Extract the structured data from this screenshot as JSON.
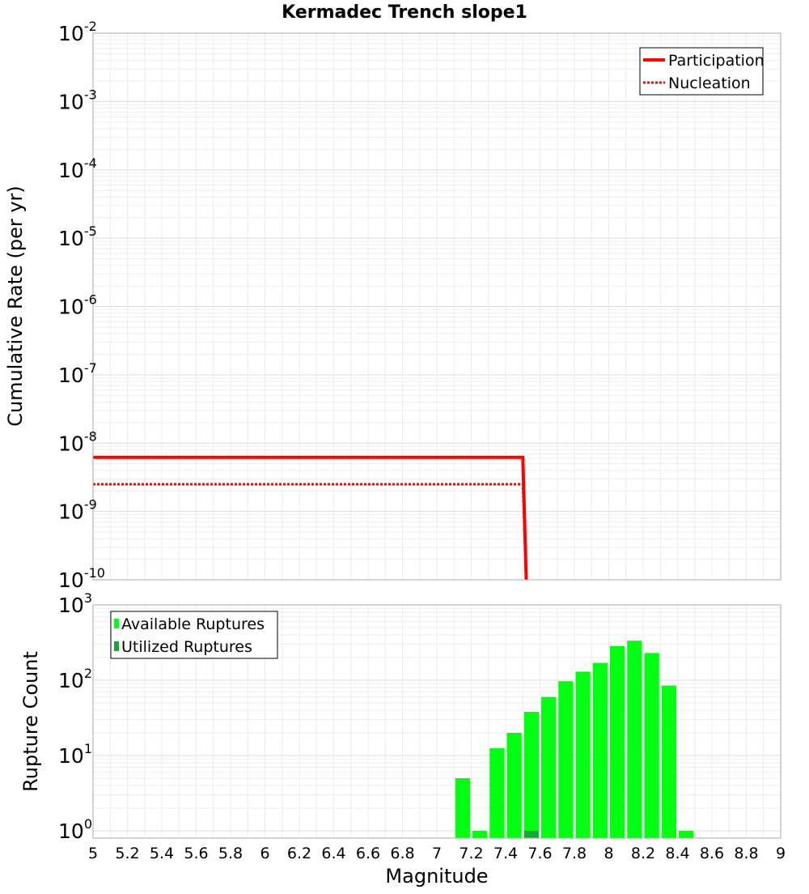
{
  "title": "Kermadec Trench slope1",
  "x_axis": {
    "label": "Magnitude",
    "range": [
      5,
      9
    ],
    "ticks": [
      "5",
      "5.2",
      "5.4",
      "5.6",
      "5.8",
      "6",
      "6.2",
      "6.4",
      "6.6",
      "6.8",
      "7",
      "7.2",
      "7.4",
      "7.6",
      "7.8",
      "8",
      "8.2",
      "8.4",
      "8.6",
      "8.8",
      "9"
    ]
  },
  "chart_data": [
    {
      "type": "line",
      "title": "Kermadec Trench slope1",
      "xlabel": "Magnitude",
      "ylabel": "Cumulative Rate (per yr)",
      "yscale": "log",
      "xlim": [
        5,
        9
      ],
      "ylim_exponents": [
        -10,
        -2
      ],
      "y_tick_base": "10",
      "y_tick_exponents": [
        "-2",
        "-3",
        "-4",
        "-5",
        "-6",
        "-7",
        "-8",
        "-9",
        "-10"
      ],
      "legend_position": "top-right",
      "series": [
        {
          "name": "Participation",
          "style": "solid",
          "color": "#ff0000",
          "x": [
            5.0,
            7.5,
            7.52
          ],
          "y": [
            6.2e-09,
            6.2e-09,
            1e-10
          ]
        },
        {
          "name": "Nucleation",
          "style": "dotted",
          "color": "#ff0000",
          "x": [
            5.0,
            7.5,
            7.52
          ],
          "y": [
            2.5e-09,
            2.5e-09,
            1e-10
          ]
        }
      ]
    },
    {
      "type": "bar",
      "xlabel": "Magnitude",
      "ylabel": "Rupture Count",
      "yscale": "log",
      "xlim": [
        5,
        9
      ],
      "ylim": [
        0.8,
        1000
      ],
      "y_tick_base": "10",
      "y_tick_exponents": [
        "3",
        "2",
        "1",
        "0"
      ],
      "legend_position": "top-left",
      "bin_width": 0.1,
      "series": [
        {
          "name": "Available Ruptures",
          "color": "#00ff11",
          "x": [
            7.15,
            7.25,
            7.35,
            7.45,
            7.55,
            7.65,
            7.75,
            7.85,
            7.95,
            8.05,
            8.15,
            8.25,
            8.35,
            8.45
          ],
          "values": [
            5,
            1,
            12.5,
            20,
            38,
            60,
            97,
            130,
            170,
            285,
            335,
            230,
            85,
            1
          ]
        },
        {
          "name": "Utilized Ruptures",
          "color": "#14a834",
          "x": [
            7.55
          ],
          "values": [
            1
          ]
        }
      ]
    }
  ]
}
